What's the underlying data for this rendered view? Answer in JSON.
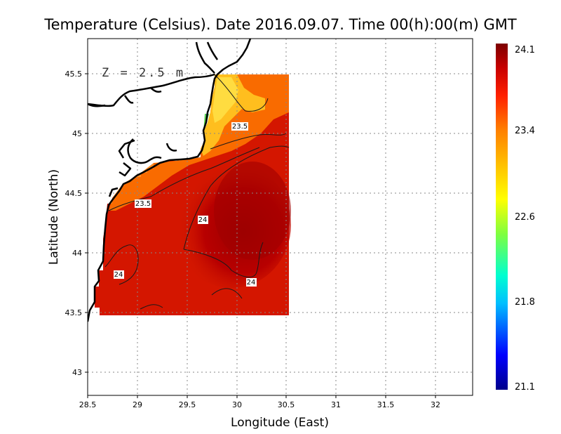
{
  "title": "Temperature (Celsius). Date 2016.09.07. Time 00(h):00(m) GMT",
  "depth_label": "Z = 2.5 m",
  "x_axis": {
    "label": "Longitude (East)",
    "ticks": [
      "28.5",
      "29",
      "29.5",
      "30",
      "30.5",
      "31",
      "31.5",
      "32"
    ]
  },
  "y_axis": {
    "label": "Latitude (North)",
    "ticks": [
      "43",
      "43.5",
      "44",
      "44.5",
      "45",
      "45.5"
    ]
  },
  "colorbar": {
    "ticks": [
      "24.1",
      "23.4",
      "22.6",
      "21.8",
      "21.1"
    ],
    "colors": [
      "#00008b",
      "#0000ff",
      "#00bfff",
      "#00ffd0",
      "#7fff3f",
      "#ffff00",
      "#ffc000",
      "#ff8000",
      "#ff2000",
      "#c80000",
      "#7d0000"
    ]
  },
  "contour_labels": [
    "23.5",
    "23.5",
    "24",
    "24",
    "24"
  ],
  "map_data": {
    "lon_range": [
      28.5,
      32.4
    ],
    "lat_range": [
      42.8,
      45.8
    ],
    "data_domain": {
      "lon": [
        28.65,
        30.55
      ],
      "lat": [
        43.48,
        45.5
      ]
    },
    "value_range": [
      21.1,
      24.1
    ],
    "grid": true
  }
}
